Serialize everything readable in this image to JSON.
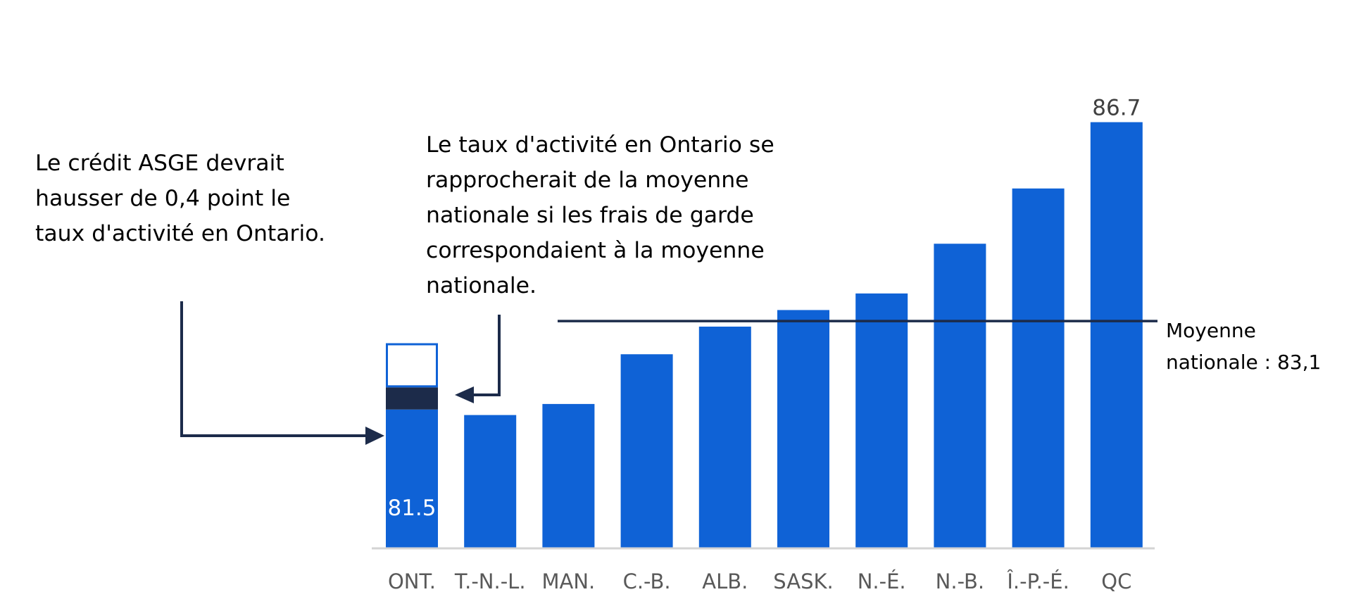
{
  "chart_data": {
    "type": "bar",
    "categories": [
      "ONT.",
      "T.-N.-L.",
      "MAN.",
      "C.-B.",
      "ALB.",
      "SASK.",
      "N.-É.",
      "N.-B.",
      "Î.-P.-É.",
      "QC"
    ],
    "values": [
      81.5,
      81.4,
      81.6,
      82.5,
      83.0,
      83.3,
      83.6,
      84.5,
      85.5,
      86.7
    ],
    "value_labels": {
      "ONT.": "81.5",
      "QC": "86.7"
    },
    "ontario_increments": [
      {
        "name": "Crédit ASGE",
        "value": 0.4,
        "color": "#1c2b4a"
      },
      {
        "name": "Frais de garde à la moyenne nationale",
        "value": 0.8,
        "style": "outline"
      }
    ],
    "reference_line": {
      "value": 83.1,
      "label_line1": "Moyenne",
      "label_line2": "nationale : 83,1"
    },
    "annotations": [
      "Le crédit ASGE devrait hausser de 0,4 point le taux d'activité en Ontario.",
      "Le taux d'activité en Ontario se rapprocherait de la moyenne nationale si les frais de garde correspondaient à la moyenne nationale."
    ],
    "title": "",
    "xlabel": "",
    "ylabel": "",
    "ylim": [
      79,
      87
    ],
    "grid": false,
    "legend": "none"
  },
  "colors": {
    "bar": "#0f62d6",
    "asge": "#1c2b4a",
    "reference_line": "#1c2b4a",
    "arrow": "#1c2b4a",
    "axis": "#d4d4d4",
    "tick_text": "#595959",
    "top_label": "#404040",
    "inner_label": "#ffffff"
  }
}
